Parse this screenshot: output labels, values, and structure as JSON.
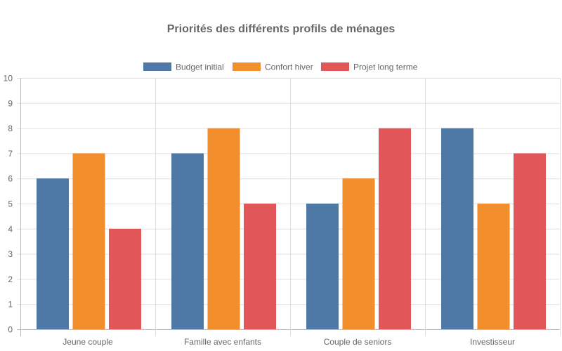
{
  "chart_data": {
    "type": "bar",
    "title": "Priorités des différents profils de ménages",
    "categories": [
      "Jeune couple",
      "Famille avec enfants",
      "Couple de seniors",
      "Investisseur"
    ],
    "series": [
      {
        "name": "Budget initial",
        "values": [
          6,
          7,
          5,
          8
        ],
        "color": "#4e79a7"
      },
      {
        "name": "Confort hiver",
        "values": [
          7,
          8,
          6,
          5
        ],
        "color": "#f28e2b"
      },
      {
        "name": "Projet long terme",
        "values": [
          4,
          5,
          8,
          7
        ],
        "color": "#e15759"
      }
    ],
    "xlabel": "",
    "ylabel": "",
    "ylim": [
      0,
      10
    ],
    "yticks": [
      "0",
      "1",
      "2",
      "3",
      "4",
      "5",
      "6",
      "7",
      "8",
      "9",
      "10"
    ],
    "grid": true,
    "legend_position": "top"
  }
}
